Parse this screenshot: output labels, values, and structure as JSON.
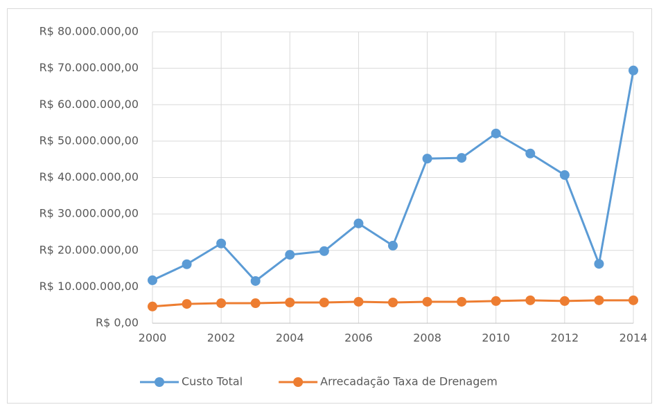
{
  "chart_data": {
    "type": "line",
    "x": [
      2000,
      2001,
      2002,
      2003,
      2004,
      2005,
      2006,
      2007,
      2008,
      2009,
      2010,
      2011,
      2012,
      2013,
      2014
    ],
    "series": [
      {
        "name": "Custo Total",
        "color": "#5b9bd5",
        "values": [
          11800000,
          16200000,
          21900000,
          11600000,
          18800000,
          19800000,
          27400000,
          21300000,
          45200000,
          45400000,
          52100000,
          46600000,
          40700000,
          16300000,
          69400000
        ]
      },
      {
        "name": "Arrecadação Taxa de Drenagem",
        "color": "#ed7d31",
        "values": [
          4600000,
          5300000,
          5500000,
          5500000,
          5700000,
          5700000,
          5900000,
          5700000,
          5900000,
          5900000,
          6100000,
          6300000,
          6100000,
          6300000,
          6300000
        ]
      }
    ],
    "xlim": [
      2000,
      2014
    ],
    "xticks": [
      2000,
      2002,
      2004,
      2006,
      2008,
      2010,
      2012,
      2014
    ],
    "ylim": [
      0,
      80000000
    ],
    "yticks": [
      {
        "value": 0,
        "label": "R$ 0,00"
      },
      {
        "value": 10000000,
        "label": "R$ 10.000.000,00"
      },
      {
        "value": 20000000,
        "label": "R$ 20.000.000,00"
      },
      {
        "value": 30000000,
        "label": "R$ 30.000.000,00"
      },
      {
        "value": 40000000,
        "label": "R$ 40.000.000,00"
      },
      {
        "value": 50000000,
        "label": "R$ 50.000.000,00"
      },
      {
        "value": 60000000,
        "label": "R$ 60.000.000,00"
      },
      {
        "value": 70000000,
        "label": "R$ 70.000.000,00"
      },
      {
        "value": 80000000,
        "label": "R$ 80.000.000,00"
      }
    ],
    "grid": true,
    "legend": "bottom"
  }
}
